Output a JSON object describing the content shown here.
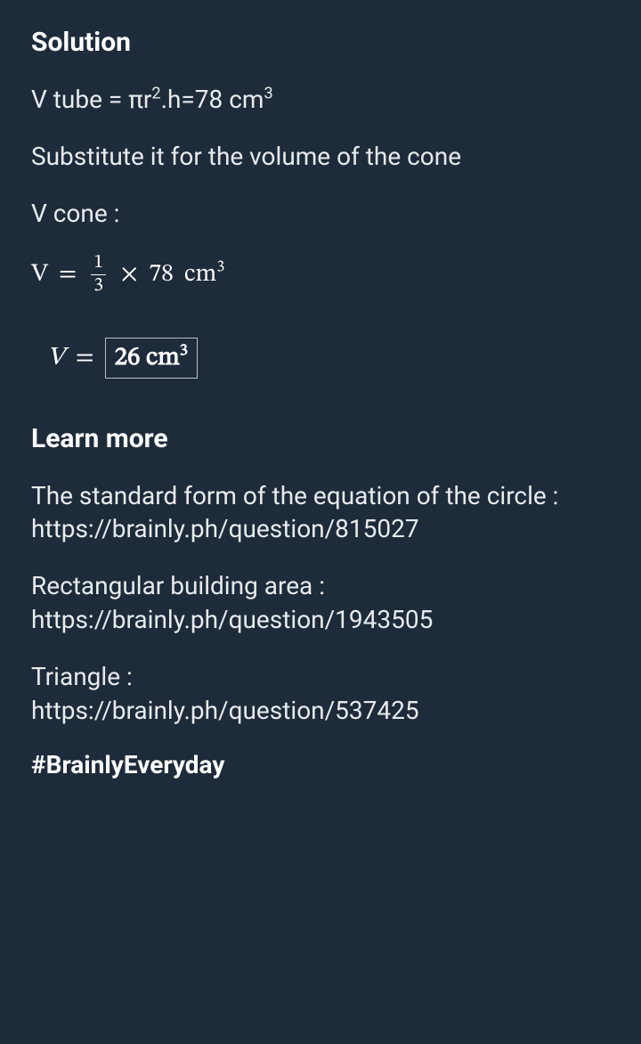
{
  "solution": {
    "heading": "Solution",
    "line1_prefix": "V tube = πr",
    "line1_sup1": "2",
    "line1_mid": ".h=78 cm",
    "line1_sup2": "3",
    "line2": "Substitute it for the volume of the cone",
    "line3": "V cone :",
    "eq1": {
      "lhs": "V",
      "eq": "=",
      "frac_num": "1",
      "frac_den": "3",
      "times": "×",
      "val": "78",
      "unit": "cm",
      "unit_sup": "3"
    },
    "eq2": {
      "lhs": "V",
      "eq": "=",
      "boxed_val": "26 cm",
      "boxed_sup": "3"
    }
  },
  "learn": {
    "heading": "Learn more",
    "items": [
      {
        "text": "The standard form of the equation of the circle :",
        "url": "https://brainly.ph/question/815027"
      },
      {
        "text": "Rectangular building area :",
        "url": "https://brainly.ph/question/1943505"
      },
      {
        "text": "Triangle :",
        "url": "https://brainly.ph/question/537425"
      }
    ],
    "hashtag": "#BrainlyEveryday"
  },
  "colors": {
    "background": "#1d2b3a",
    "text": "#e8ebed",
    "heading": "#ffffff",
    "box_border": "#b8bec4"
  }
}
